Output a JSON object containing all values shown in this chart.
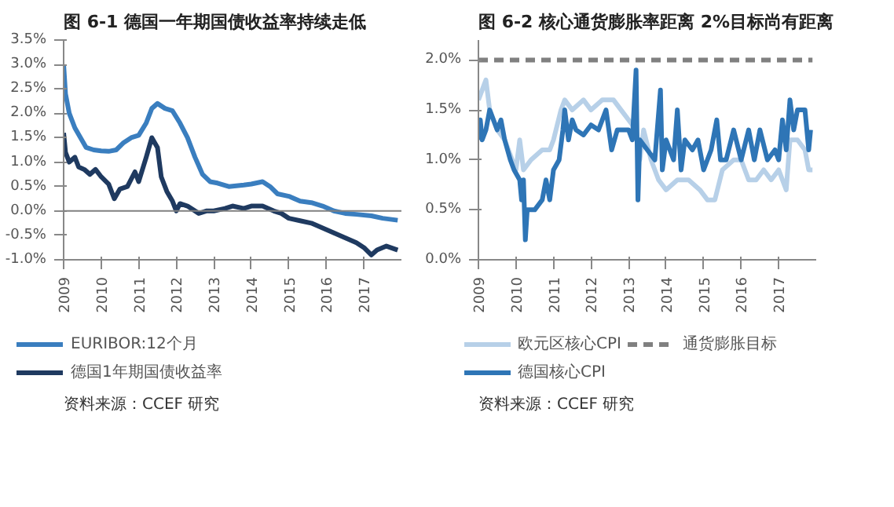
{
  "chart_data": [
    {
      "type": "line",
      "title": "图 6-1  德国一年期国债收益率持续走低",
      "annotations": [
        "资料来源：CCEF 研究"
      ],
      "legend": "bottom",
      "grid": false,
      "xlim": [
        2009,
        2018
      ],
      "xticks": [
        2009,
        2010,
        2011,
        2012,
        2013,
        2014,
        2015,
        2016,
        2017
      ],
      "ylim": [
        -1.0,
        3.5
      ],
      "yticks": [
        {
          "value": -1.0,
          "label": "-1.0%"
        },
        {
          "value": -0.5,
          "label": "-0.5%"
        },
        {
          "value": 0.0,
          "label": "0.0%"
        },
        {
          "value": 0.5,
          "label": "0.5%"
        },
        {
          "value": 1.0,
          "label": "1.0%"
        },
        {
          "value": 1.5,
          "label": "1.5%"
        },
        {
          "value": 2.0,
          "label": "2.0%"
        },
        {
          "value": 2.5,
          "label": "2.5%"
        },
        {
          "value": 3.0,
          "label": "3.0%"
        },
        {
          "value": 3.5,
          "label": "3.5%"
        }
      ],
      "ref_lines": [
        {
          "axis": "y",
          "value": 0.0,
          "color": "#808080"
        }
      ],
      "series": [
        {
          "name": "EURIBOR:12个月",
          "color": "#3a7ebf",
          "x": [
            2009.0,
            2009.05,
            2009.15,
            2009.3,
            2009.45,
            2009.6,
            2009.8,
            2010.0,
            2010.2,
            2010.4,
            2010.6,
            2010.8,
            2011.0,
            2011.2,
            2011.35,
            2011.5,
            2011.7,
            2011.9,
            2012.1,
            2012.3,
            2012.5,
            2012.7,
            2012.9,
            2013.1,
            2013.4,
            2013.8,
            2014.0,
            2014.3,
            2014.5,
            2014.7,
            2015.0,
            2015.3,
            2015.6,
            2015.9,
            2016.2,
            2016.5,
            2016.8,
            2017.2,
            2017.5,
            2017.9
          ],
          "values": [
            3.0,
            2.4,
            2.0,
            1.7,
            1.5,
            1.3,
            1.25,
            1.23,
            1.22,
            1.25,
            1.4,
            1.5,
            1.55,
            1.8,
            2.1,
            2.2,
            2.1,
            2.05,
            1.8,
            1.5,
            1.1,
            0.75,
            0.6,
            0.57,
            0.5,
            0.53,
            0.55,
            0.6,
            0.5,
            0.35,
            0.3,
            0.2,
            0.17,
            0.1,
            0.0,
            -0.05,
            -0.07,
            -0.1,
            -0.15,
            -0.19
          ]
        },
        {
          "name": "德国1年期国债收益率",
          "color": "#1f3a60",
          "x": [
            2009.0,
            2009.05,
            2009.15,
            2009.3,
            2009.4,
            2009.55,
            2009.7,
            2009.85,
            2010.0,
            2010.2,
            2010.35,
            2010.5,
            2010.7,
            2010.9,
            2011.0,
            2011.2,
            2011.35,
            2011.5,
            2011.6,
            2011.75,
            2011.9,
            2012.0,
            2012.1,
            2012.3,
            2012.6,
            2012.8,
            2013.0,
            2013.3,
            2013.5,
            2013.8,
            2014.0,
            2014.3,
            2014.6,
            2014.8,
            2015.0,
            2015.3,
            2015.6,
            2015.9,
            2016.2,
            2016.5,
            2016.8,
            2017.0,
            2017.2,
            2017.35,
            2017.6,
            2017.9
          ],
          "values": [
            1.6,
            1.2,
            1.0,
            1.1,
            0.9,
            0.85,
            0.75,
            0.85,
            0.7,
            0.55,
            0.25,
            0.45,
            0.5,
            0.8,
            0.6,
            1.1,
            1.5,
            1.3,
            0.7,
            0.4,
            0.2,
            0.0,
            0.15,
            0.1,
            -0.05,
            0.0,
            0.0,
            0.05,
            0.1,
            0.05,
            0.1,
            0.1,
            0.0,
            -0.05,
            -0.15,
            -0.2,
            -0.25,
            -0.35,
            -0.45,
            -0.55,
            -0.65,
            -0.75,
            -0.9,
            -0.8,
            -0.72,
            -0.8
          ]
        }
      ]
    },
    {
      "type": "line",
      "title": "图 6-2  核心通货膨胀率距离 2%目标尚有距离",
      "annotations": [
        "资料来源：CCEF 研究"
      ],
      "legend": "bottom",
      "grid": false,
      "xlim": [
        2009,
        2018
      ],
      "xticks": [
        2009,
        2010,
        2011,
        2012,
        2013,
        2014,
        2015,
        2016,
        2017
      ],
      "ylim": [
        0.0,
        2.2
      ],
      "yticks": [
        {
          "value": 0.0,
          "label": "0.0%"
        },
        {
          "value": 0.5,
          "label": "0.5%"
        },
        {
          "value": 1.0,
          "label": "1.0%"
        },
        {
          "value": 1.5,
          "label": "1.5%"
        },
        {
          "value": 2.0,
          "label": "2.0%"
        }
      ],
      "series": [
        {
          "name": "欧元区核心CPI",
          "color": "#b7d0e8",
          "x": [
            2009.0,
            2009.1,
            2009.2,
            2009.3,
            2009.5,
            2009.7,
            2009.9,
            2010.0,
            2010.1,
            2010.2,
            2010.4,
            2010.7,
            2010.9,
            2011.0,
            2011.2,
            2011.3,
            2011.5,
            2011.8,
            2012.0,
            2012.3,
            2012.6,
            2012.8,
            2013.0,
            2013.2,
            2013.3,
            2013.4,
            2013.6,
            2013.8,
            2014.0,
            2014.3,
            2014.6,
            2014.9,
            2015.1,
            2015.3,
            2015.5,
            2015.8,
            2016.0,
            2016.2,
            2016.4,
            2016.6,
            2016.8,
            2017.0,
            2017.2,
            2017.3,
            2017.5,
            2017.7,
            2017.8,
            2017.9
          ],
          "values": [
            1.6,
            1.7,
            1.8,
            1.5,
            1.3,
            1.2,
            1.0,
            0.9,
            1.2,
            0.9,
            1.0,
            1.1,
            1.1,
            1.2,
            1.5,
            1.6,
            1.5,
            1.6,
            1.5,
            1.6,
            1.6,
            1.5,
            1.4,
            1.3,
            1.0,
            1.3,
            1.0,
            0.8,
            0.7,
            0.8,
            0.8,
            0.7,
            0.6,
            0.6,
            0.9,
            1.0,
            1.0,
            0.8,
            0.8,
            0.9,
            0.8,
            0.9,
            0.7,
            1.2,
            1.2,
            1.1,
            0.9,
            0.9
          ]
        },
        {
          "name": "德国核心CPI",
          "color": "#2e75b6",
          "x": [
            2009.0,
            2009.05,
            2009.1,
            2009.2,
            2009.3,
            2009.4,
            2009.5,
            2009.6,
            2009.7,
            2009.85,
            2009.95,
            2010.1,
            2010.15,
            2010.2,
            2010.25,
            2010.3,
            2010.5,
            2010.7,
            2010.8,
            2010.9,
            2011.0,
            2011.15,
            2011.25,
            2011.3,
            2011.4,
            2011.5,
            2011.6,
            2011.8,
            2012.0,
            2012.2,
            2012.3,
            2012.4,
            2012.55,
            2012.7,
            2013.0,
            2013.1,
            2013.2,
            2013.25,
            2013.3,
            2013.5,
            2013.7,
            2013.85,
            2013.9,
            2014.0,
            2014.2,
            2014.3,
            2014.4,
            2014.5,
            2014.7,
            2014.85,
            2015.0,
            2015.2,
            2015.35,
            2015.45,
            2015.6,
            2015.8,
            2016.0,
            2016.2,
            2016.35,
            2016.5,
            2016.7,
            2016.9,
            2017.0,
            2017.1,
            2017.2,
            2017.3,
            2017.4,
            2017.5,
            2017.7,
            2017.8,
            2017.85
          ],
          "values": [
            1.2,
            1.4,
            1.2,
            1.3,
            1.5,
            1.4,
            1.3,
            1.4,
            1.2,
            1.0,
            0.9,
            0.8,
            0.6,
            0.8,
            0.2,
            0.5,
            0.5,
            0.6,
            0.8,
            0.6,
            0.9,
            1.0,
            1.3,
            1.5,
            1.2,
            1.4,
            1.3,
            1.25,
            1.35,
            1.3,
            1.4,
            1.5,
            1.1,
            1.3,
            1.3,
            1.2,
            1.9,
            0.6,
            1.2,
            1.1,
            1.0,
            1.7,
            0.9,
            1.2,
            1.0,
            1.5,
            0.9,
            1.2,
            1.1,
            1.2,
            0.9,
            1.1,
            1.4,
            1.0,
            1.0,
            1.3,
            1.0,
            1.3,
            1.0,
            1.3,
            1.0,
            1.1,
            1.0,
            1.4,
            1.1,
            1.6,
            1.3,
            1.5,
            1.5,
            1.1,
            1.3
          ]
        },
        {
          "name": "通货膨胀目标",
          "color": "#808080",
          "line_style": "dashed",
          "x": [
            2009.0,
            2017.9
          ],
          "values": [
            2.0,
            2.0
          ]
        }
      ]
    }
  ]
}
